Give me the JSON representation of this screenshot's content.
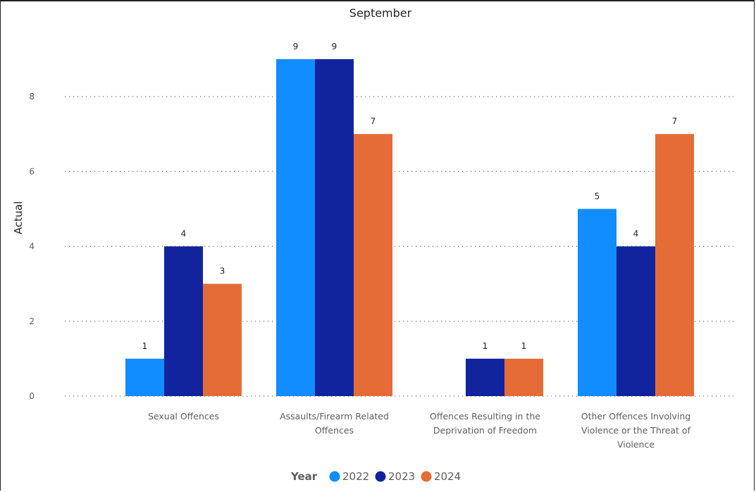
{
  "chart_data": {
    "type": "bar",
    "title": "September",
    "xlabel": "",
    "ylabel": "Actual",
    "ylim": [
      0,
      9
    ],
    "yticks": [
      0,
      2,
      4,
      6,
      8
    ],
    "grid": true,
    "legend_placement": "bottom-center",
    "legend_title": "Year",
    "categories": [
      "Sexual Offences",
      "Assaults/Firearm Related Offences",
      "Offences Resulting in the Deprivation of Freedom",
      "Other Offences Involving Violence or the Threat of Violence"
    ],
    "category_lines": [
      [
        "Sexual Offences"
      ],
      [
        "Assaults/Firearm Related",
        "Offences"
      ],
      [
        "Offences Resulting in the",
        "Deprivation of Freedom"
      ],
      [
        "Other Offences Involving",
        "Violence or the Threat of",
        "Violence"
      ]
    ],
    "series": [
      {
        "name": "2022",
        "color": "#118dff",
        "values": [
          1,
          9,
          null,
          5
        ]
      },
      {
        "name": "2023",
        "color": "#12239e",
        "values": [
          4,
          9,
          1,
          4
        ]
      },
      {
        "name": "2024",
        "color": "#e66c37",
        "values": [
          3,
          7,
          1,
          7
        ]
      }
    ]
  }
}
